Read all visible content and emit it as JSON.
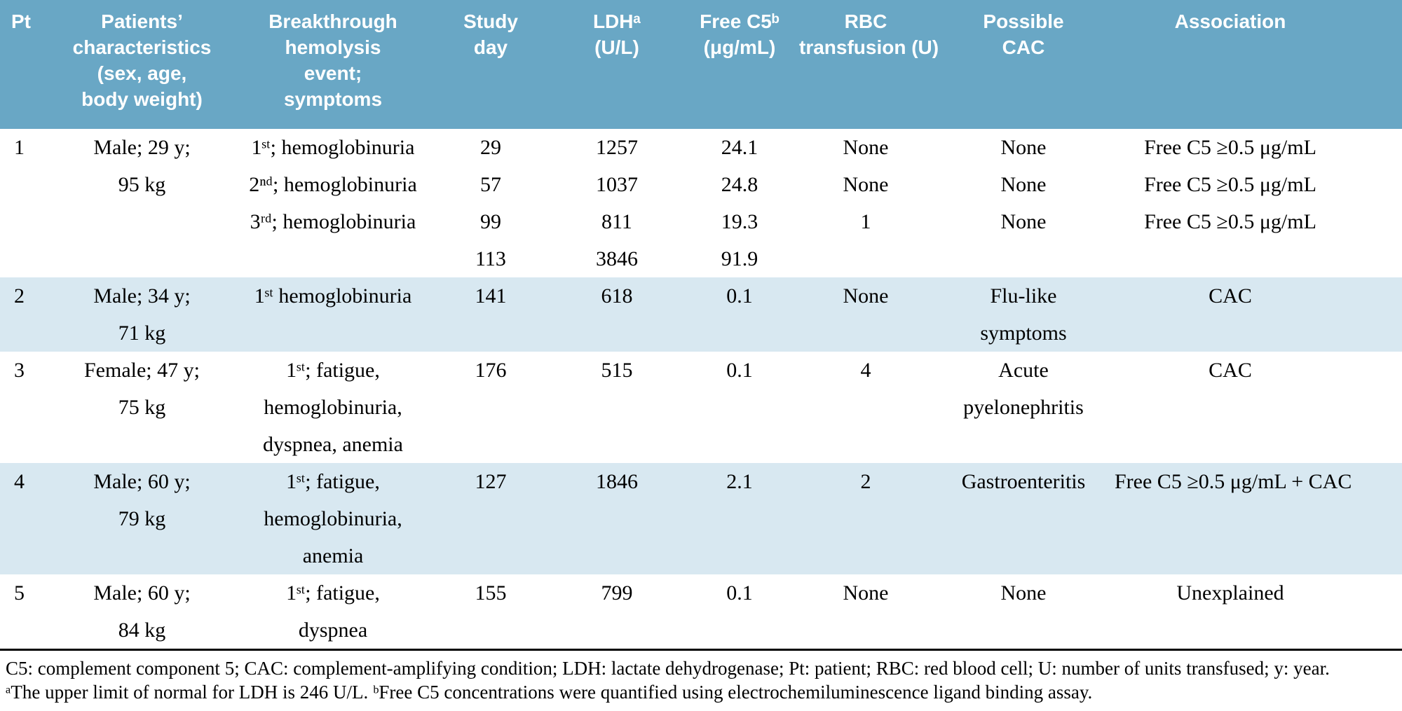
{
  "colors": {
    "header_bg": "#69a7c5",
    "row_alt_bg": "#d8e8f1",
    "header_text": "#ffffff",
    "body_text": "#000000"
  },
  "table": {
    "header": [
      {
        "id": "pt",
        "lines": [
          "Pt"
        ]
      },
      {
        "id": "characteristics",
        "lines": [
          "Patients’",
          "characteristics",
          "(sex, age,",
          "body weight)"
        ]
      },
      {
        "id": "events",
        "lines": [
          "Breakthrough",
          "hemolysis",
          "event;",
          "symptoms"
        ]
      },
      {
        "id": "study_day",
        "lines": [
          "Study",
          "day"
        ]
      },
      {
        "id": "ldh",
        "lines": [
          "LDHᵃ",
          "(U/L)"
        ]
      },
      {
        "id": "free_c5",
        "lines": [
          "Free C5ᵇ",
          "(μg/mL)"
        ]
      },
      {
        "id": "rbc",
        "lines": [
          "RBC",
          "transfusion (U)"
        ]
      },
      {
        "id": "cac",
        "lines": [
          "Possible",
          "CAC"
        ]
      },
      {
        "id": "association",
        "lines": [
          "Association"
        ]
      }
    ],
    "rows": [
      {
        "patient": "1",
        "cells": [
          [
            "1"
          ],
          [
            "Male; 29 y;",
            "95 kg"
          ],
          [
            "1ˢᵗ; hemoglobinuria",
            "2ⁿᵈ; hemoglobinuria",
            "3ʳᵈ; hemoglobinuria"
          ],
          [
            "29",
            "57",
            "99",
            "113"
          ],
          [
            "1257",
            "1037",
            "811",
            "3846"
          ],
          [
            "24.1",
            "24.8",
            "19.3",
            "91.9"
          ],
          [
            "None",
            "None",
            "1"
          ],
          [
            "None",
            "None",
            "None"
          ],
          [
            "Free C5 ≥0.5 μg/mL",
            "Free C5 ≥0.5 μg/mL",
            "Free C5 ≥0.5 μg/mL"
          ]
        ]
      },
      {
        "patient": "2",
        "cells": [
          [
            "2"
          ],
          [
            "Male; 34 y;",
            "71 kg"
          ],
          [
            "1ˢᵗ hemoglobinuria"
          ],
          [
            "141"
          ],
          [
            "618"
          ],
          [
            "0.1"
          ],
          [
            "None"
          ],
          [
            "Flu-like",
            "symptoms"
          ],
          [
            "CAC"
          ]
        ]
      },
      {
        "patient": "3",
        "cells": [
          [
            "3"
          ],
          [
            "Female; 47 y;",
            "75 kg"
          ],
          [
            "1ˢᵗ; fatigue,",
            "hemoglobinuria,",
            "dyspnea, anemia"
          ],
          [
            "176"
          ],
          [
            "515"
          ],
          [
            "0.1"
          ],
          [
            "4"
          ],
          [
            "Acute",
            "pyelonephritis"
          ],
          [
            "CAC"
          ]
        ]
      },
      {
        "patient": "4",
        "cells": [
          [
            "4"
          ],
          [
            "Male; 60 y;",
            "79 kg"
          ],
          [
            "1ˢᵗ; fatigue,",
            "hemoglobinuria,",
            "anemia"
          ],
          [
            "127"
          ],
          [
            "1846"
          ],
          [
            "2.1"
          ],
          [
            "2"
          ],
          [
            "Gastroenteritis"
          ],
          [
            "Free C5 ≥0.5 μg/mL + CAC"
          ]
        ]
      },
      {
        "patient": "5",
        "cells": [
          [
            "5"
          ],
          [
            "Male; 60 y;",
            "84 kg"
          ],
          [
            "1ˢᵗ; fatigue,",
            "dyspnea"
          ],
          [
            "155"
          ],
          [
            "799"
          ],
          [
            "0.1"
          ],
          [
            "None"
          ],
          [
            "None"
          ],
          [
            "Unexplained"
          ]
        ]
      }
    ]
  },
  "footnotes": {
    "abbreviations": "C5: complement component 5; CAC: complement-amplifying condition; LDH: lactate dehydrogenase; Pt: patient;  RBC: red blood cell; U: number of units transfused; y: year.",
    "notes": "ᵃThe upper limit of normal for LDH is 246 U/L.  ᵇFree C5 concentrations were quantified using electrochemiluminescence ligand binding assay."
  }
}
